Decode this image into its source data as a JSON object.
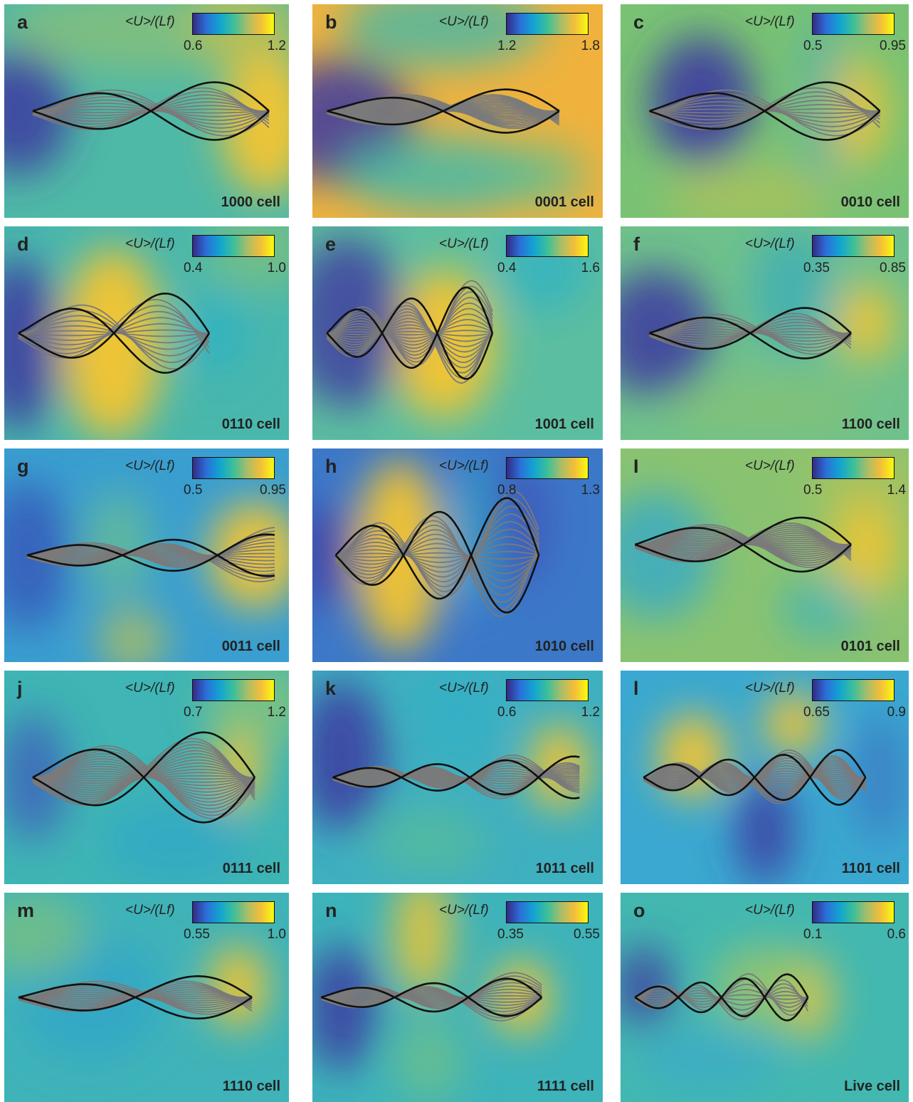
{
  "colorbar_title": "<U>/(Lf)",
  "colors": {
    "low": "#352a87",
    "mid_low": "#12a4d1",
    "mid": "#3bbf9a",
    "mid_high": "#a5be6a",
    "high": "#f9fb0e",
    "strong_wave": "#111111",
    "weak_wave": "#7a7a7a"
  },
  "panels": [
    {
      "letter": "a",
      "cell": "1000 cell",
      "min": "0.6",
      "max": "1.2"
    },
    {
      "letter": "b",
      "cell": "0001 cell",
      "min": "1.2",
      "max": "1.8"
    },
    {
      "letter": "c",
      "cell": "0010 cell",
      "min": "0.5",
      "max": "0.95"
    },
    {
      "letter": "d",
      "cell": "0110 cell",
      "min": "0.4",
      "max": "1.0"
    },
    {
      "letter": "e",
      "cell": "1001 cell",
      "min": "0.4",
      "max": "1.6"
    },
    {
      "letter": "f",
      "cell": "1100 cell",
      "min": "0.35",
      "max": "0.85"
    },
    {
      "letter": "g",
      "cell": "0011 cell",
      "min": "0.5",
      "max": "0.95"
    },
    {
      "letter": "h",
      "cell": "1010 cell",
      "min": "0.8",
      "max": "1.3"
    },
    {
      "letter": "I",
      "cell": "0101 cell",
      "min": "0.5",
      "max": "1.4"
    },
    {
      "letter": "j",
      "cell": "0111 cell",
      "min": "0.7",
      "max": "1.2"
    },
    {
      "letter": "k",
      "cell": "1011 cell",
      "min": "0.6",
      "max": "1.2"
    },
    {
      "letter": "l",
      "cell": "1101 cell",
      "min": "0.65",
      "max": "0.9"
    },
    {
      "letter": "m",
      "cell": "1110 cell",
      "min": "0.55",
      "max": "1.0"
    },
    {
      "letter": "n",
      "cell": "1111 cell",
      "min": "0.35",
      "max": "0.55"
    },
    {
      "letter": "o",
      "cell": "Live cell",
      "min": "0.1",
      "max": "0.6"
    }
  ]
}
